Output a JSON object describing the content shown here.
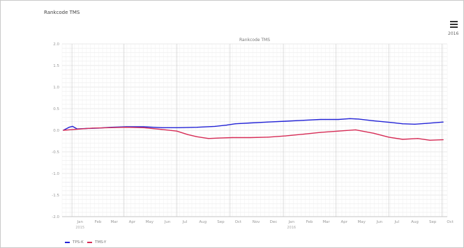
{
  "header": {
    "title": "Rankcode TMS",
    "menu_icon": "hamburger-menu-icon",
    "year_label": "2016"
  },
  "chart_data": {
    "type": "line",
    "title": "Rankcode TMS",
    "xlabel": "",
    "ylabel": "",
    "ylim": [
      -2.0,
      2.0
    ],
    "yticks": [
      "2.0",
      "1.5",
      "1.0",
      "0.5",
      "0.0",
      "-0.5",
      "-1.0",
      "-1.5",
      "-2.0"
    ],
    "xticks": [
      {
        "label": "Jan",
        "sub": "2015"
      },
      {
        "label": "Feb"
      },
      {
        "label": "Mar"
      },
      {
        "label": "Apr"
      },
      {
        "label": "May"
      },
      {
        "label": "Jun"
      },
      {
        "label": "Jul"
      },
      {
        "label": "Aug"
      },
      {
        "label": "Sep"
      },
      {
        "label": "Oct"
      },
      {
        "label": "Nov"
      },
      {
        "label": "Dec"
      },
      {
        "label": "Jan",
        "sub": "2016"
      },
      {
        "label": "Feb"
      },
      {
        "label": "Mar"
      },
      {
        "label": "Apr"
      },
      {
        "label": "May"
      },
      {
        "label": "Jun"
      },
      {
        "label": "Jul"
      },
      {
        "label": "Aug"
      },
      {
        "label": "Sep"
      },
      {
        "label": "Oct"
      }
    ],
    "grid": true,
    "legend_position": "bottom-left",
    "series": [
      {
        "name": "TPS-K",
        "color": "#2323d6",
        "points": [
          [
            "2014-12-17",
            0.0
          ],
          [
            "2014-12-27",
            0.07
          ],
          [
            "2015-01-02",
            0.09
          ],
          [
            "2015-01-10",
            0.03
          ],
          [
            "2015-01-25",
            0.04
          ],
          [
            "2015-02-15",
            0.05
          ],
          [
            "2015-03-10",
            0.07
          ],
          [
            "2015-04-05",
            0.08
          ],
          [
            "2015-05-05",
            0.08
          ],
          [
            "2015-06-05",
            0.06
          ],
          [
            "2015-07-05",
            0.06
          ],
          [
            "2015-08-05",
            0.07
          ],
          [
            "2015-09-05",
            0.09
          ],
          [
            "2015-09-25",
            0.12
          ],
          [
            "2015-10-10",
            0.15
          ],
          [
            "2015-11-05",
            0.17
          ],
          [
            "2015-12-05",
            0.19
          ],
          [
            "2016-01-05",
            0.21
          ],
          [
            "2016-02-05",
            0.23
          ],
          [
            "2016-03-05",
            0.25
          ],
          [
            "2016-04-05",
            0.25
          ],
          [
            "2016-04-25",
            0.27
          ],
          [
            "2016-05-10",
            0.26
          ],
          [
            "2016-06-05",
            0.22
          ],
          [
            "2016-07-05",
            0.18
          ],
          [
            "2016-07-25",
            0.15
          ],
          [
            "2016-08-15",
            0.14
          ],
          [
            "2016-09-05",
            0.16
          ],
          [
            "2016-10-03",
            0.19
          ]
        ]
      },
      {
        "name": "TMS-Y",
        "color": "#d62b55",
        "points": [
          [
            "2014-12-17",
            0.0
          ],
          [
            "2015-01-05",
            0.02
          ],
          [
            "2015-02-05",
            0.05
          ],
          [
            "2015-03-05",
            0.06
          ],
          [
            "2015-04-05",
            0.07
          ],
          [
            "2015-05-05",
            0.06
          ],
          [
            "2015-06-05",
            0.02
          ],
          [
            "2015-07-01",
            -0.02
          ],
          [
            "2015-07-20",
            -0.1
          ],
          [
            "2015-08-05",
            -0.15
          ],
          [
            "2015-08-25",
            -0.19
          ],
          [
            "2015-09-10",
            -0.18
          ],
          [
            "2015-10-05",
            -0.17
          ],
          [
            "2015-11-05",
            -0.17
          ],
          [
            "2015-12-05",
            -0.16
          ],
          [
            "2016-01-05",
            -0.13
          ],
          [
            "2016-02-05",
            -0.09
          ],
          [
            "2016-03-05",
            -0.05
          ],
          [
            "2016-04-05",
            -0.02
          ],
          [
            "2016-05-05",
            0.01
          ],
          [
            "2016-06-05",
            -0.07
          ],
          [
            "2016-07-01",
            -0.16
          ],
          [
            "2016-07-25",
            -0.21
          ],
          [
            "2016-08-20",
            -0.19
          ],
          [
            "2016-09-10",
            -0.23
          ],
          [
            "2016-10-03",
            -0.22
          ]
        ]
      }
    ]
  }
}
